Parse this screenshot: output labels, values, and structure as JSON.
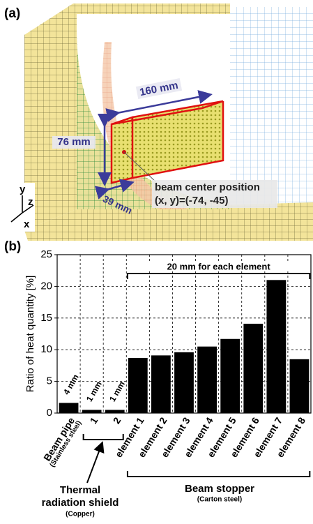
{
  "panel_a": {
    "label": "(a)",
    "length_label": "160 mm",
    "height_label": "76 mm",
    "width_label": "39 mm",
    "beam_label": "beam center position",
    "beam_coords": "(x, y)=(-74, -45)",
    "axis_y": "y",
    "axis_z": "z",
    "axis_x": "x"
  },
  "chart_data": {
    "type": "bar",
    "panel_label": "(b)",
    "y_label": "Ratio of heat quantity [%]",
    "categories": [
      "Beam pipe",
      "1",
      "2",
      "element 1",
      "element 2",
      "element 3",
      "element 4",
      "element 5",
      "element 6",
      "element 7",
      "element 8"
    ],
    "category_note": "(Stainless steel)",
    "values": [
      1.6,
      0.5,
      0.5,
      8.7,
      9.1,
      9.6,
      10.5,
      11.7,
      14.1,
      21.0,
      8.5
    ],
    "thickness_labels": [
      "4 mm",
      "1 mm",
      "1 mm"
    ],
    "color": "#000000",
    "ylim": [
      0,
      25
    ],
    "yticks": [
      0,
      5,
      10,
      15,
      20,
      25
    ],
    "grid": true,
    "bracket_label": "20 mm for each element",
    "shield_label": [
      "Thermal",
      "radiation shield"
    ],
    "shield_note": "(Copper)",
    "stopper_label": "Beam stopper",
    "stopper_note": "(Carton steel)"
  }
}
